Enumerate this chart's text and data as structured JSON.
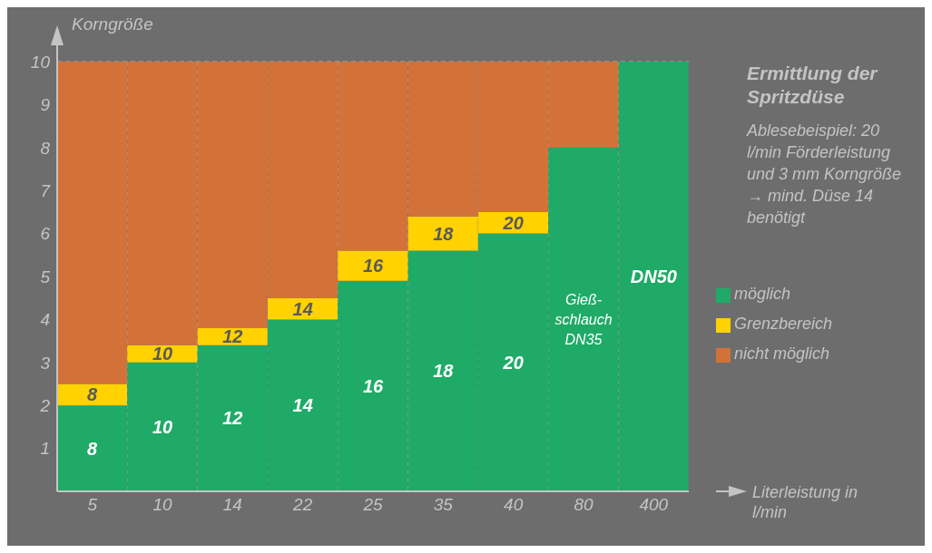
{
  "chart_data": {
    "type": "bar",
    "stacked": true,
    "title": "Ermittlung der Spritzdüse",
    "xlabel": "Literleistung in l/min",
    "ylabel": "Korngröße",
    "annotations": [
      "Ablesebeispiel: 20 l/min Förderleistung und 3 mm Korngröße → mind. Düse 14 benötigt",
      "8",
      "10",
      "12",
      "14",
      "16",
      "18",
      "20",
      "Gieß-schlauch DN35",
      "DN50",
      "8",
      "10",
      "12",
      "14",
      "16",
      "18",
      "20"
    ],
    "categories": [
      "5",
      "10",
      "14",
      "22",
      "25",
      "35",
      "40",
      "80",
      "400"
    ],
    "series": [
      {
        "name": "möglich",
        "color": "#1faa67",
        "values": [
          2.0,
          3.0,
          3.4,
          4.0,
          4.9,
          5.6,
          6.0,
          8.0,
          10
        ]
      },
      {
        "name": "Grenzbereich",
        "color": "#ffd200",
        "values": [
          0.5,
          0.4,
          0.4,
          0.5,
          0.7,
          0.8,
          0.5,
          null,
          null
        ]
      },
      {
        "name": "nicht möglich",
        "color": "#d27239",
        "values": [
          7.5,
          6.6,
          6.2,
          5.5,
          4.4,
          3.6,
          3.5,
          2.0,
          null
        ]
      }
    ],
    "ylim": [
      0,
      10
    ],
    "yticks": [
      1,
      2,
      3,
      4,
      5,
      6,
      7,
      8,
      9,
      10
    ],
    "grid": true,
    "legend": "right"
  }
}
